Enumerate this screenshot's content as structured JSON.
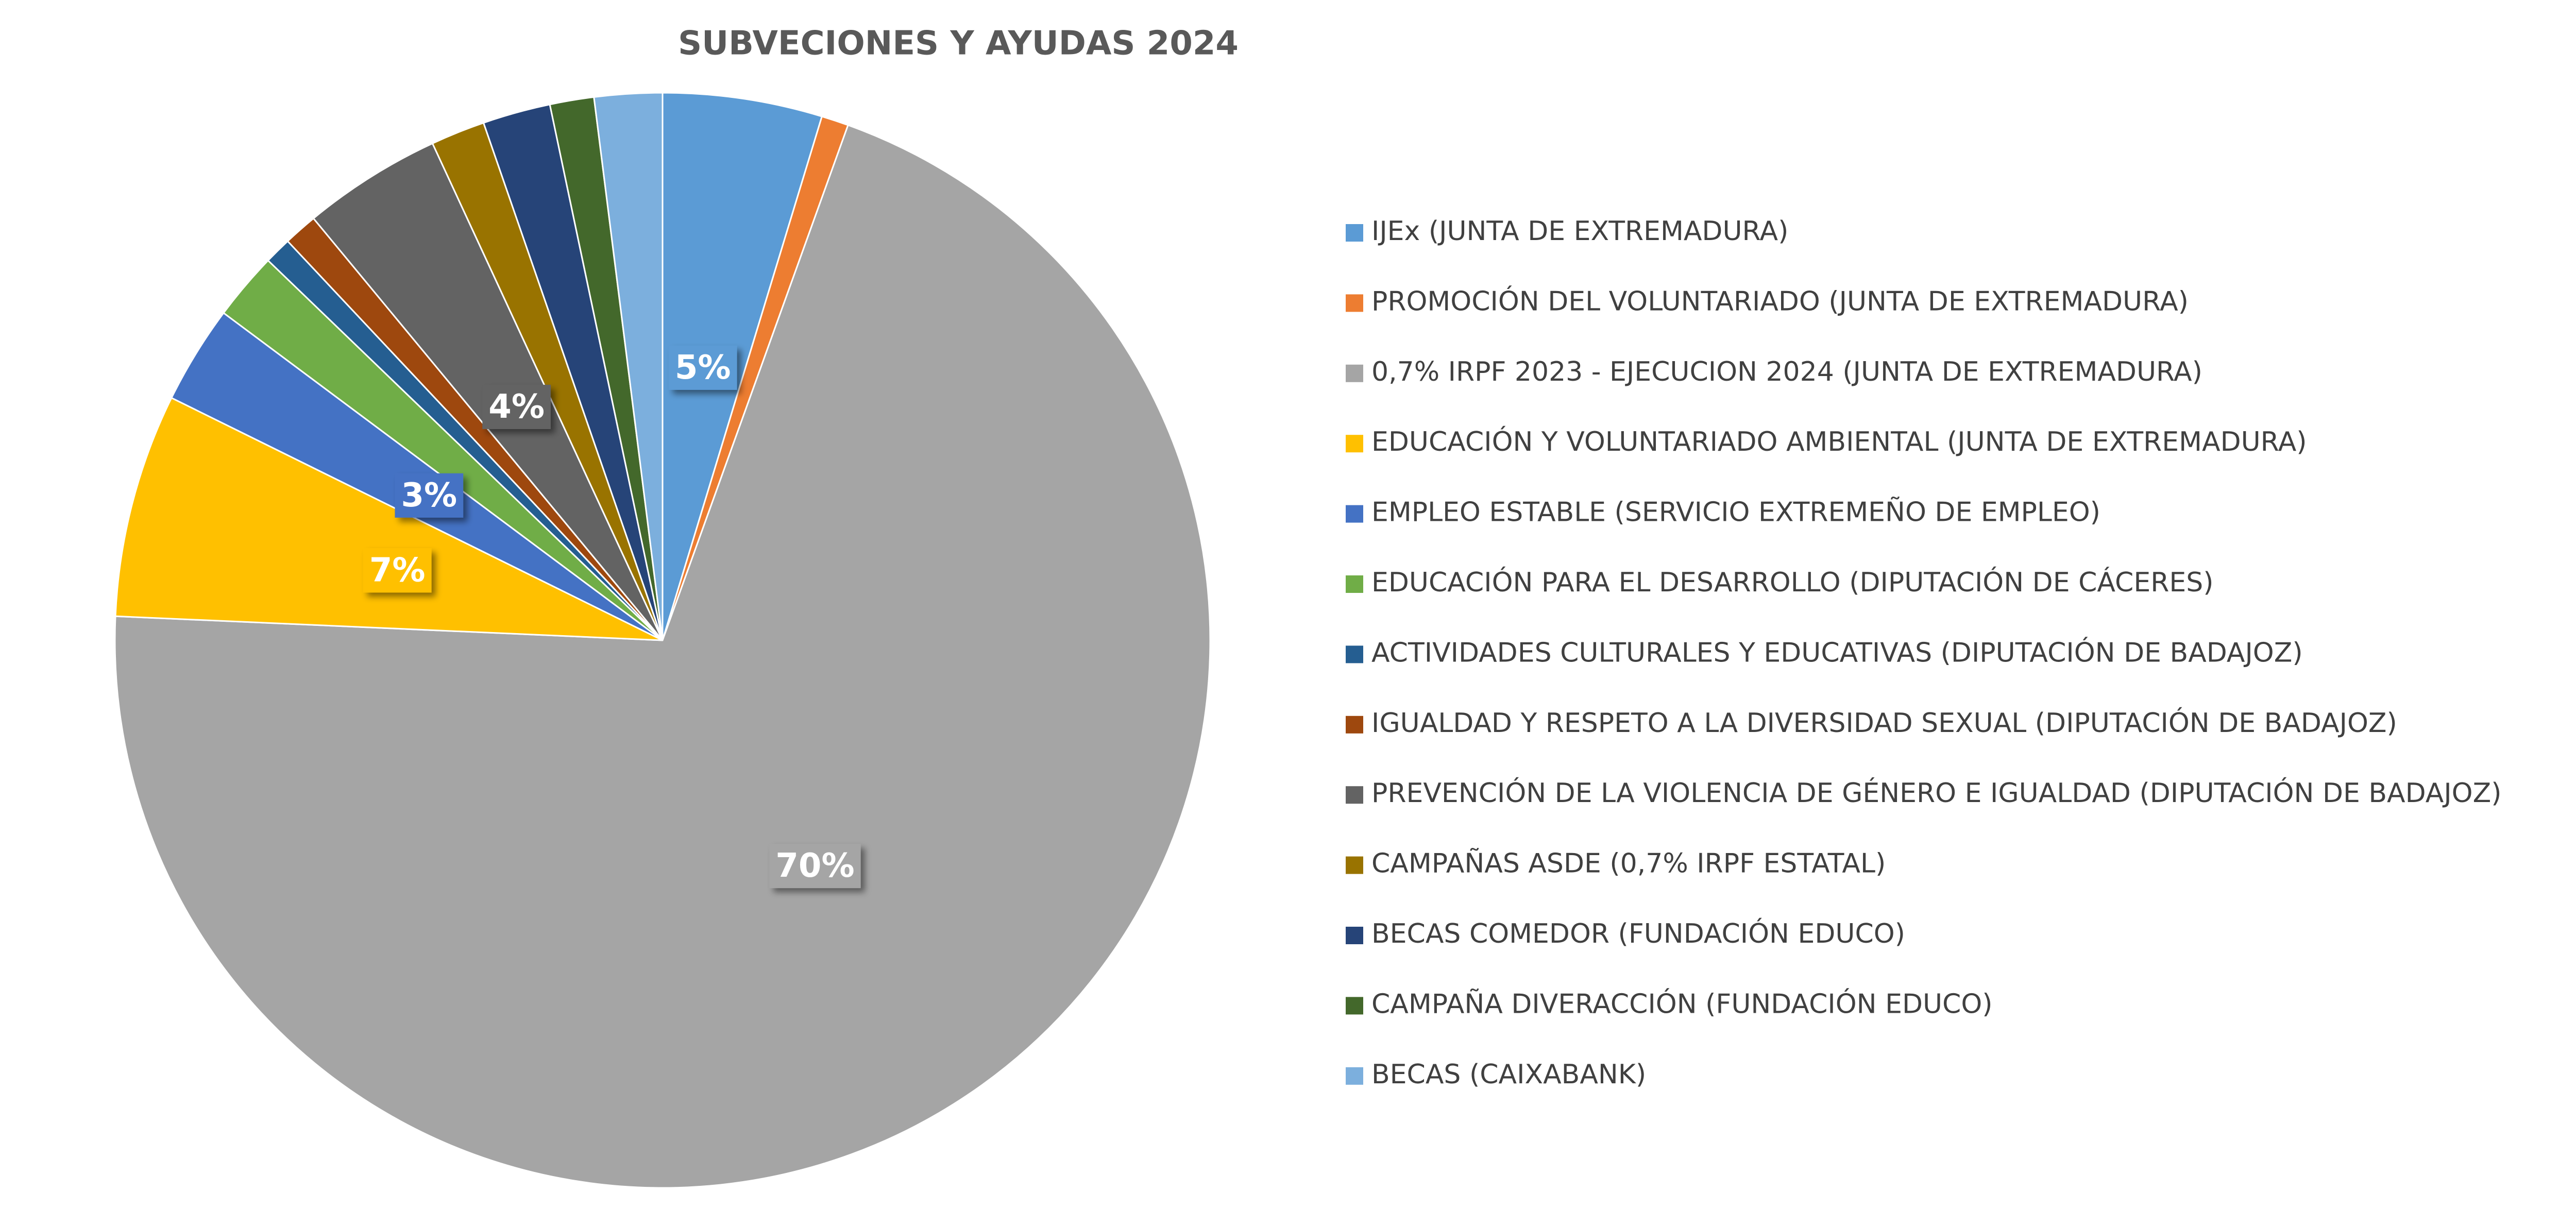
{
  "chart_data": {
    "type": "pie",
    "title": "SUBVECIONES Y AYUDAS 2024",
    "categories": [
      "IJEx (JUNTA DE EXTREMADURA)",
      "PROMOCIÓN DEL VOLUNTARIADO (JUNTA DE EXTREMADURA)",
      "0,7% IRPF 2023 - EJECUCION 2024 (JUNTA DE EXTREMADURA)",
      "EDUCACIÓN Y VOLUNTARIADO AMBIENTAL (JUNTA DE EXTREMADURA)",
      "EMPLEO ESTABLE (SERVICIO EXTREMEÑO DE EMPLEO)",
      "EDUCACIÓN PARA EL DESARROLLO (DIPUTACIÓN DE CÁCERES)",
      "ACTIVIDADES CULTURALES Y EDUCATIVAS (DIPUTACIÓN DE BADAJOZ)",
      "IGUALDAD Y RESPETO A LA DIVERSIDAD SEXUAL (DIPUTACIÓN DE BADAJOZ)",
      "PREVENCIÓN DE LA VIOLENCIA DE GÉNERO E IGUALDAD (DIPUTACIÓN DE BADAJOZ)",
      "CAMPAÑAS ASDE (0,7% IRPF ESTATAL)",
      "BECAS COMEDOR (FUNDACIÓN EDUCO)",
      "CAMPAÑA DIVERACCIÓN (FUNDACIÓN EDUCO)",
      "BECAS (CAIXABANK)"
    ],
    "values": [
      4.7,
      0.8,
      70.2,
      6.6,
      2.9,
      2.0,
      0.8,
      1.0,
      4.1,
      1.6,
      2.0,
      1.3,
      2.0
    ],
    "value_labels": [
      "5%",
      null,
      "70%",
      "7%",
      "3%",
      null,
      null,
      null,
      "4%",
      null,
      null,
      null,
      null
    ],
    "colors": [
      "#5b9bd5",
      "#ed7d31",
      "#a5a5a5",
      "#ffc000",
      "#4472c4",
      "#70ad47",
      "#255e91",
      "#9e480e",
      "#636363",
      "#997300",
      "#264478",
      "#43682b",
      "#7cafdd"
    ]
  }
}
